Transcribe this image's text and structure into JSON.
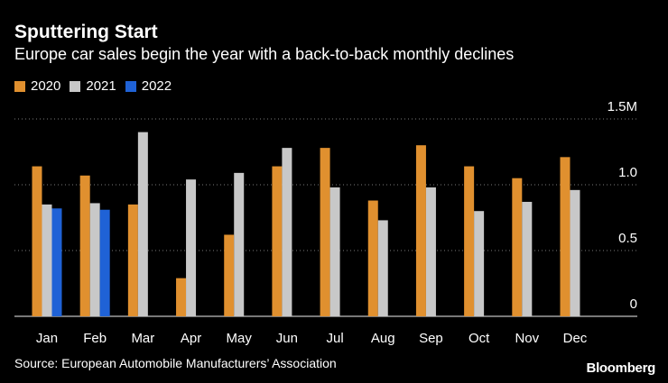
{
  "header": {
    "title": "Sputtering Start",
    "subtitle": "Europe car sales begin the year with a back-to-back monthly declines"
  },
  "legend": [
    {
      "label": "2020",
      "color": "#E0902F"
    },
    {
      "label": "2021",
      "color": "#C8C8C8"
    },
    {
      "label": "2022",
      "color": "#1F62D6"
    }
  ],
  "footer": {
    "source": "Source: European Automobile Manufacturers’ Association",
    "brand": "Bloomberg"
  },
  "chart_data": {
    "type": "bar",
    "title": "Sputtering Start",
    "xlabel": "",
    "ylabel": "",
    "ylim": [
      0,
      1.5
    ],
    "yticks": [
      {
        "value": 0,
        "label": "0"
      },
      {
        "value": 0.5,
        "label": "0.5"
      },
      {
        "value": 1.0,
        "label": "1.0"
      },
      {
        "value": 1.5,
        "label": "1.5M"
      }
    ],
    "grid": true,
    "categories": [
      "Jan",
      "Feb",
      "Mar",
      "Apr",
      "May",
      "Jun",
      "Jul",
      "Aug",
      "Sep",
      "Oct",
      "Nov",
      "Dec"
    ],
    "series": [
      {
        "name": "2020",
        "color": "#E0902F",
        "values": [
          1.14,
          1.07,
          0.85,
          0.29,
          0.62,
          1.14,
          1.28,
          0.88,
          1.3,
          1.14,
          1.05,
          1.21
        ]
      },
      {
        "name": "2021",
        "color": "#C8C8C8",
        "values": [
          0.85,
          0.86,
          1.4,
          1.04,
          1.09,
          1.28,
          0.98,
          0.73,
          0.98,
          0.8,
          0.87,
          0.96
        ]
      },
      {
        "name": "2022",
        "color": "#1F62D6",
        "values": [
          0.82,
          0.81,
          null,
          null,
          null,
          null,
          null,
          null,
          null,
          null,
          null,
          null
        ]
      }
    ]
  }
}
